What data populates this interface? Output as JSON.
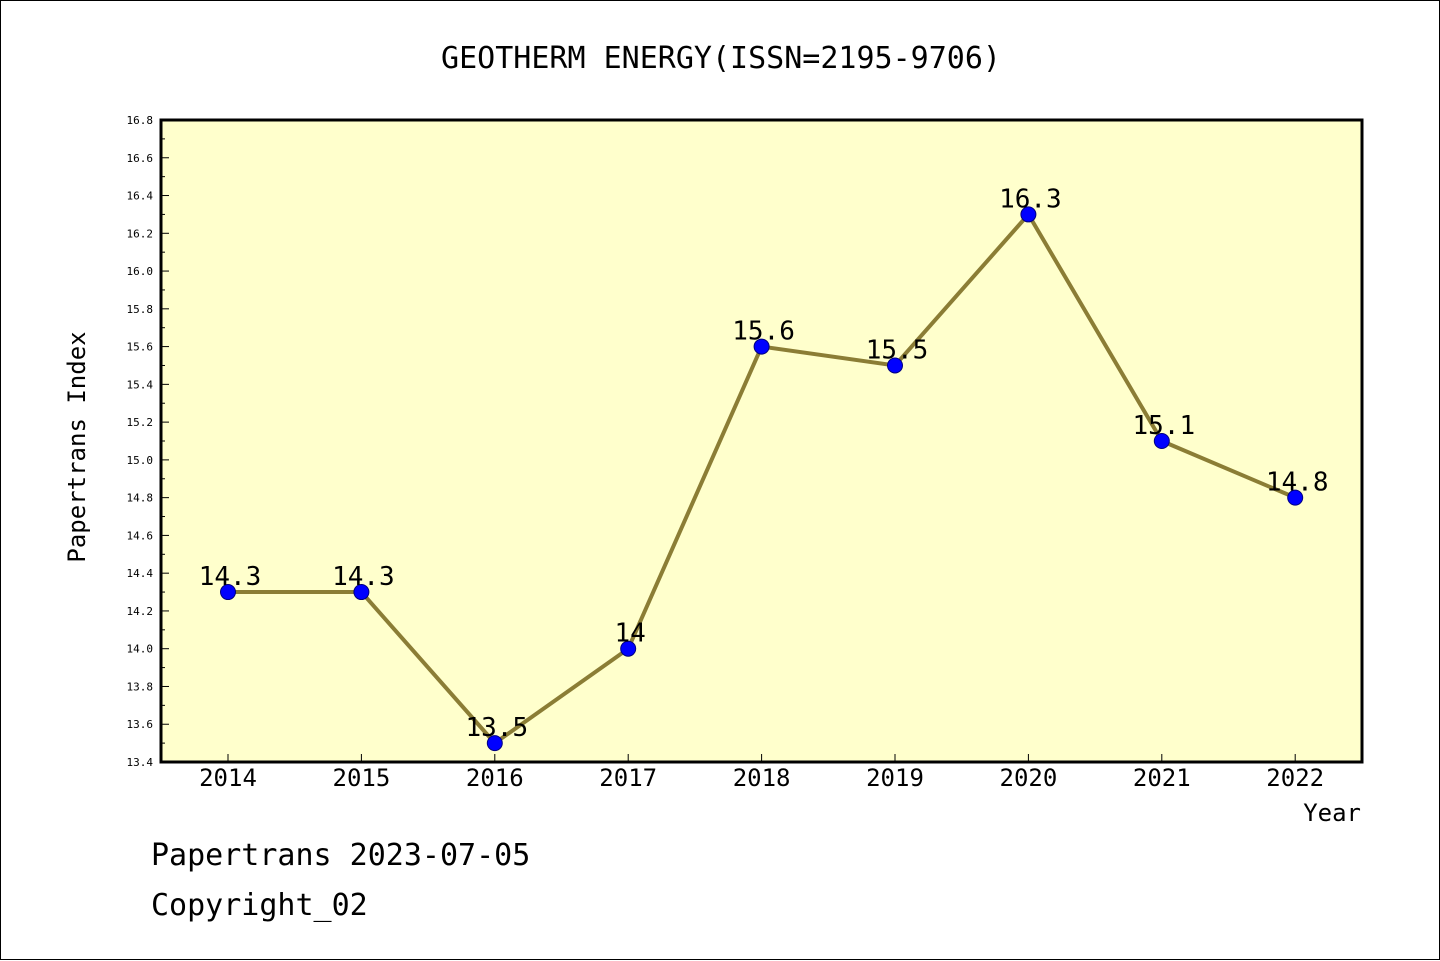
{
  "chart_data": {
    "type": "line",
    "title": "GEOTHERM ENERGY(ISSN=2195-9706)",
    "xlabel": "Year",
    "ylabel": "Papertrans Index",
    "categories": [
      "2014",
      "2015",
      "2016",
      "2017",
      "2018",
      "2019",
      "2020",
      "2021",
      "2022"
    ],
    "series": [
      {
        "values": [
          14.3,
          14.3,
          13.5,
          14.0,
          15.6,
          15.5,
          16.3,
          15.1,
          14.8
        ],
        "data_labels": [
          "14.3",
          "14.3",
          "13.5",
          "14",
          "15.6",
          "15.5",
          "16.3",
          "15.1",
          "14.8"
        ]
      }
    ],
    "ylim": [
      13.4,
      16.8
    ],
    "yticks": [
      "13.4",
      "13.6",
      "13.8",
      "14.0",
      "14.2",
      "14.4",
      "14.6",
      "14.8",
      "15.0",
      "15.2",
      "15.4",
      "15.6",
      "15.8",
      "16.0",
      "16.2",
      "16.4",
      "16.6",
      "16.8"
    ],
    "grid": false,
    "colors": {
      "plot_background": "#ffffcc",
      "line": "#8b7d35",
      "marker": "#0000ff"
    }
  },
  "footer": {
    "line1": "Papertrans 2023-07-05",
    "line2": "Copyright_02"
  }
}
